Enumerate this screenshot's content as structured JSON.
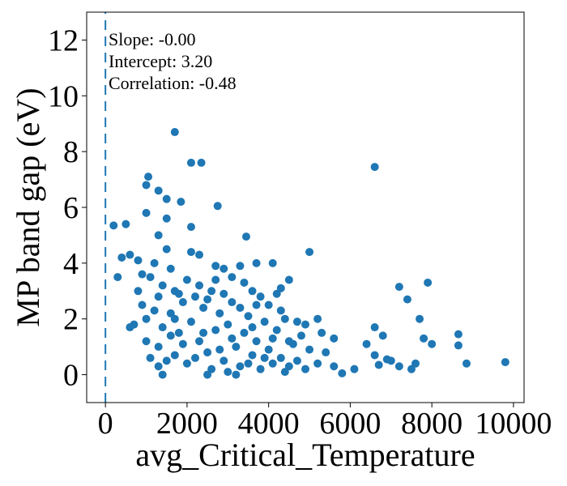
{
  "chart_data": {
    "type": "scatter",
    "xlabel": "avg_Critical_Temperature",
    "ylabel": "MP band gap (eV)",
    "annotations": [
      "Slope: -0.00",
      "Intercept: 3.20",
      "Correlation: -0.48"
    ],
    "color": "#1f77b4",
    "xlim": [
      -460,
      10260
    ],
    "ylim": [
      -1,
      13
    ],
    "xticks": [
      0,
      2000,
      4000,
      6000,
      8000,
      10000
    ],
    "yticks": [
      0,
      2,
      4,
      6,
      8,
      10,
      12
    ],
    "grid": false,
    "dashed_line": {
      "x": [
        0,
        0
      ],
      "y": [
        -1,
        13
      ]
    },
    "x": [
      1700,
      2100,
      2350,
      6600,
      1050,
      1000,
      1300,
      1500,
      1850,
      2750,
      200,
      500,
      1000,
      1500,
      2100,
      3450,
      5000,
      400,
      600,
      300,
      7200,
      7400,
      7900,
      7700,
      6600,
      6800,
      7000,
      7200,
      7600,
      7800,
      8000,
      8650,
      8650,
      8850,
      9800,
      6400,
      6600,
      6700,
      6900,
      7500,
      5800,
      6100,
      5600,
      5200,
      5300,
      4900,
      4100,
      4500,
      4300,
      3700,
      3300,
      2700,
      2300,
      3600,
      2900,
      800,
      900,
      1000,
      1100,
      1200,
      1300,
      1400,
      1500,
      1600,
      1700,
      1800,
      1900,
      2000,
      2100,
      2200,
      2300,
      2400,
      2500,
      2600,
      2700,
      2800,
      2900,
      3000,
      3100,
      3200,
      3300,
      3400,
      3500,
      3600,
      3700,
      3800,
      3900,
      4000,
      4100,
      4200,
      4300,
      4400,
      4500,
      4600,
      4700,
      4800,
      4900,
      5000,
      1000,
      1100,
      1300,
      1400,
      1500,
      1600,
      1700,
      1800,
      1900,
      2000,
      2200,
      2400,
      2600,
      2800,
      3000,
      3100,
      3300,
      3500,
      3700,
      3900,
      4100,
      4300,
      4500,
      4700,
      5200,
      5400,
      5600,
      700,
      800,
      900,
      1200,
      1300,
      1400,
      1600,
      1700,
      2100,
      2300,
      2500,
      2700,
      2900,
      3100,
      3400,
      3600,
      3800,
      4000,
      4200,
      4400,
      2500,
      3200,
      1300,
      600
    ],
    "values": [
      8.7,
      7.6,
      7.6,
      7.45,
      7.1,
      6.8,
      6.6,
      6.3,
      6.2,
      6.05,
      5.35,
      5.4,
      5.8,
      5.6,
      5.3,
      4.95,
      4.4,
      4.2,
      4.3,
      3.5,
      3.15,
      2.7,
      3.3,
      2.0,
      1.7,
      1.4,
      0.5,
      0.3,
      0.4,
      1.3,
      1.1,
      1.45,
      1.05,
      0.4,
      0.45,
      1.1,
      0.7,
      0.35,
      0.55,
      0.2,
      0.05,
      0.2,
      1.3,
      2.0,
      1.5,
      1.8,
      4.0,
      3.4,
      3.1,
      4.0,
      3.9,
      3.9,
      4.3,
      3.0,
      3.8,
      3.0,
      2.5,
      2.0,
      3.5,
      4.0,
      2.8,
      3.2,
      4.5,
      2.2,
      3.0,
      1.5,
      2.6,
      3.4,
      1.9,
      2.8,
      1.2,
      2.4,
      0.8,
      3.0,
      1.6,
      2.2,
      0.5,
      1.8,
      2.6,
      1.0,
      0.3,
      1.5,
      2.1,
      0.7,
      1.2,
      0.2,
      1.9,
      0.9,
      0.4,
      1.6,
      0.6,
      2.0,
      0.3,
      1.1,
      0.5,
      1.4,
      0.2,
      0.9,
      1.2,
      0.6,
      1.0,
      0.0,
      0.5,
      1.4,
      0.7,
      2.9,
      1.1,
      0.4,
      0.6,
      1.5,
      0.2,
      0.9,
      0.1,
      1.3,
      2.4,
      0.4,
      2.5,
      0.6,
      1.3,
      2.3,
      1.2,
      1.9,
      0.4,
      0.8,
      0.3,
      1.8,
      4.1,
      3.6,
      2.3,
      5.0,
      1.7,
      3.8,
      2.0,
      4.4,
      3.2,
      2.7,
      3.4,
      2.9,
      3.5,
      3.3,
      1.7,
      2.8,
      2.5,
      2.9,
      0.1,
      0.0,
      0.0,
      0.3,
      1.7
    ]
  }
}
